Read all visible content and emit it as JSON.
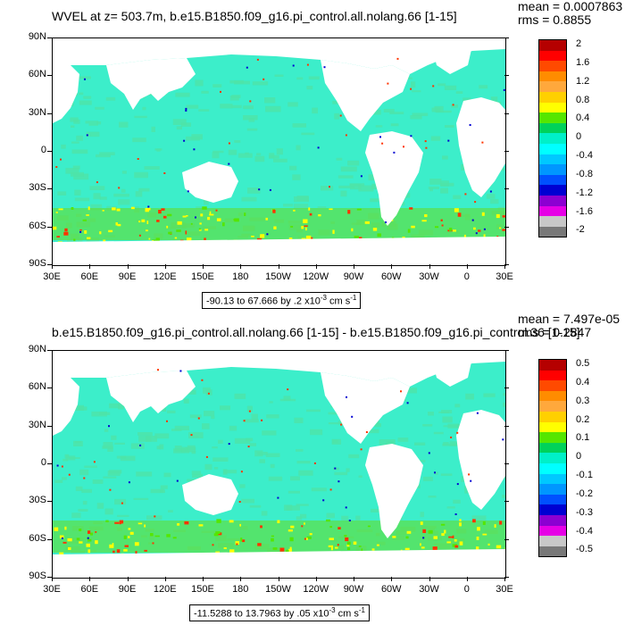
{
  "panels": [
    {
      "title": "WVEL at z= 503.7m, b.e15.B1850.f09_g16.pi_control.all.nolang.66 [1-15]",
      "stats": {
        "mean": "mean = 0.0007863",
        "rms": "rms = 0.8855"
      },
      "range_text": "-90.13 to 67.666 by .2 x10",
      "range_exp": "-3",
      "range_unit": " cm s",
      "range_unit_exp": "-1",
      "legend": {
        "labels": [
          "2",
          "1.6",
          "1.2",
          "0.8",
          "0.4",
          "0",
          "-0.4",
          "-0.8",
          "-1.2",
          "-1.6",
          "-2"
        ],
        "colors": [
          "#b50000",
          "#ff0000",
          "#ff4a00",
          "#ff8c00",
          "#ffa83c",
          "#ffd000",
          "#ffff00",
          "#55e600",
          "#00d25a",
          "#00f0c8",
          "#00ffff",
          "#00c8ff",
          "#0096ff",
          "#0050ff",
          "#0000d2",
          "#8c00d2",
          "#e600e6",
          "#c8c8c8",
          "#787878"
        ]
      }
    },
    {
      "title": "b.e15.B1850.f09_g16.pi_control.all.nolang.66 [1-15] - b.e15.B1850.f09_g16.pi_control.36 [1-15]",
      "stats": {
        "mean": "mean = 7.497e-05",
        "rms": "rms = 0.2847"
      },
      "range_text": "-11.5288 to 13.7963 by .05 x10",
      "range_exp": "-3",
      "range_unit": " cm s",
      "range_unit_exp": "-1",
      "legend": {
        "labels": [
          "0.5",
          "0.4",
          "0.3",
          "0.2",
          "0.1",
          "0",
          "-0.1",
          "-0.2",
          "-0.3",
          "-0.4",
          "-0.5"
        ],
        "colors": [
          "#b50000",
          "#ff0000",
          "#ff4a00",
          "#ff8c00",
          "#ffa83c",
          "#ffd000",
          "#ffff00",
          "#55e600",
          "#00d25a",
          "#00f0c8",
          "#00ffff",
          "#00c8ff",
          "#0096ff",
          "#0050ff",
          "#0000d2",
          "#8c00d2",
          "#e600e6",
          "#c8c8c8",
          "#787878"
        ]
      }
    }
  ],
  "lat_labels": [
    "90N",
    "60N",
    "30N",
    "0",
    "30S",
    "60S",
    "90S"
  ],
  "lon_labels": [
    "30E",
    "60E",
    "90E",
    "120E",
    "150E",
    "180",
    "150W",
    "120W",
    "90W",
    "60W",
    "30W",
    "0",
    "30E"
  ],
  "colors": {
    "ocean": "#3ceeca",
    "ocean_alt": "#4de3a8",
    "land": "#ffffff",
    "positive_band": "#66dd22",
    "hotspot": "#ff3300"
  }
}
